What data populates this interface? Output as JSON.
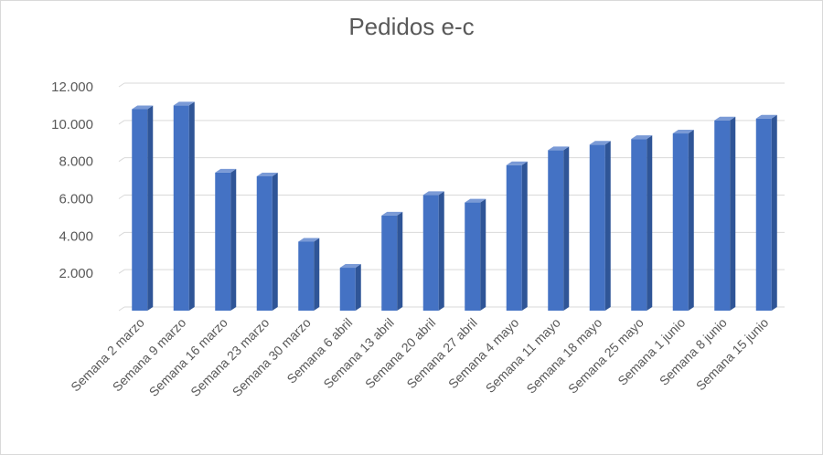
{
  "chart_data": {
    "type": "bar",
    "title": "Pedidos e-c",
    "xlabel": "",
    "ylabel": "",
    "ylim": [
      0,
      12000
    ],
    "yticks": [
      "2.000",
      "4.000",
      "6.000",
      "8.000",
      "10.000",
      "12.000"
    ],
    "yticks_values": [
      2000,
      4000,
      6000,
      8000,
      10000,
      12000
    ],
    "categories": [
      "Semana 2 marzo",
      "Semana 9 marzo",
      "Semana 16 marzo",
      "Semana 23 marzo",
      "Semana 30 marzo",
      "Semana 6 abril",
      "Semana 13 abril",
      "Semana 20 abril",
      "Semana 27 abril",
      "Semana 4 mayo",
      "Semana 11 mayo",
      "Semana 18 mayo",
      "Semana 25 mayo",
      "Semana 1 junio",
      "Semana 8 junio",
      "Semana 15 junio"
    ],
    "values": [
      10800,
      11000,
      7400,
      7200,
      3700,
      2300,
      5100,
      6200,
      5800,
      7800,
      8600,
      8900,
      9200,
      9500,
      10200,
      10300
    ],
    "style": "3d-column",
    "bar_color": "#4472c4",
    "grid": true,
    "legend": "none"
  }
}
